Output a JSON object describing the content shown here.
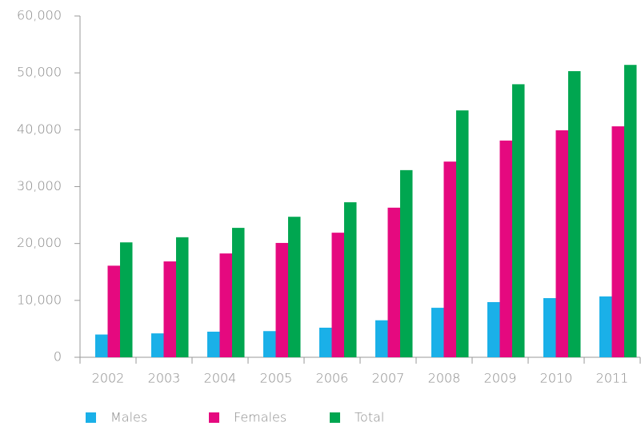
{
  "chart_data": {
    "type": "bar",
    "categories": [
      "2002",
      "2003",
      "2004",
      "2005",
      "2006",
      "2007",
      "2008",
      "2009",
      "2010",
      "2011"
    ],
    "series": [
      {
        "name": "Males",
        "color": "#1ab0e8",
        "values": [
          4000,
          4200,
          4500,
          4600,
          5200,
          6500,
          8700,
          9700,
          10400,
          10700
        ]
      },
      {
        "name": "Females",
        "color": "#e5097f",
        "values": [
          16100,
          16850,
          18250,
          20100,
          21900,
          26300,
          34400,
          38100,
          39900,
          40600
        ]
      },
      {
        "name": "Total",
        "color": "#00a650",
        "values": [
          20200,
          21100,
          22750,
          24700,
          27250,
          32900,
          43400,
          48000,
          50300,
          51400
        ]
      }
    ],
    "ylim": [
      0,
      60000
    ],
    "yticks": [
      0,
      {
        "value": 10000,
        "label": "10,000"
      },
      {
        "value": 20000,
        "label": "20,000"
      },
      {
        "value": 30000,
        "label": "30,000"
      },
      {
        "value": 40000,
        "label": "40,000"
      },
      {
        "value": 50000,
        "label": "50,000"
      },
      {
        "value": 60000,
        "label": "60,000"
      }
    ],
    "legend": "bottom-left"
  }
}
